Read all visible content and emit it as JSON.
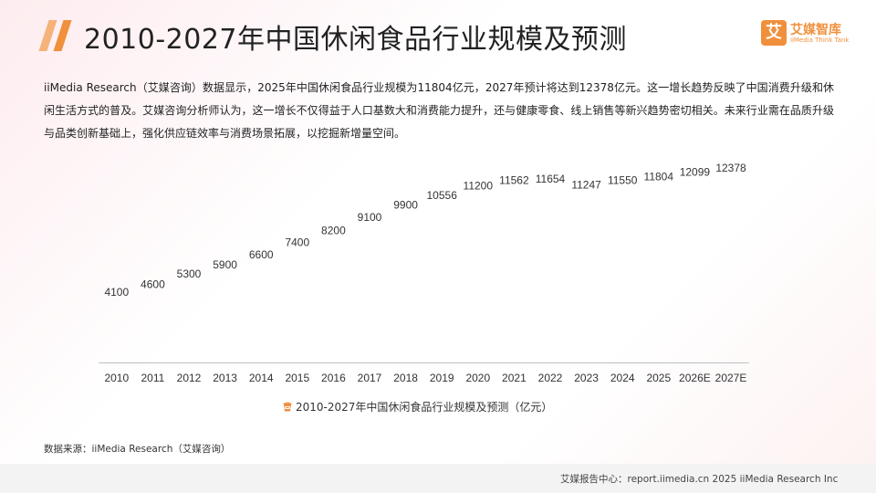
{
  "header": {
    "title": "2010-2027年中国休闲食品行业规模及预测",
    "logo_mark": "艾",
    "logo_cn": "艾媒智库",
    "logo_en": "iiMedia Think Tank"
  },
  "intro": "iiMedia Research（艾媒咨询）数据显示，2025年中国休闲食品行业规模为11804亿元，2027年预计将达到12378亿元。这一增长趋势反映了中国消费升级和休闲生活方式的普及。艾媒咨询分析师认为，这一增长不仅得益于人口基数大和消费能力提升，还与健康零食、线上销售等新兴趋势密切相关。未来行业需在品质升级与品类创新基础上，强化供应链效率与消费场景拓展，以挖掘新增量空间。",
  "chart_data": {
    "type": "bar",
    "title": "2010-2027年中国休闲食品行业规模及预测",
    "categories": [
      "2010",
      "2011",
      "2012",
      "2013",
      "2014",
      "2015",
      "2016",
      "2017",
      "2018",
      "2019",
      "2020",
      "2021",
      "2022",
      "2023",
      "2024",
      "2025",
      "2026E",
      "2027E"
    ],
    "values": [
      4100,
      4600,
      5300,
      5900,
      6600,
      7400,
      8200,
      9100,
      9900,
      10556,
      11200,
      11562,
      11654,
      11247,
      11550,
      11804,
      12099,
      12378
    ],
    "value_labels": [
      "4100",
      "4600",
      "5300",
      "5900",
      "6600",
      "7400",
      "8200",
      "9100",
      "9900",
      "10556",
      "11200",
      "11562",
      "11654",
      "11247",
      "11550",
      "11804",
      "12099",
      "12378"
    ],
    "series_name": "2010-2027年中国休闲食品行业规模及预测（亿元）",
    "unit": "亿元",
    "ylim": [
      0,
      12500
    ],
    "xlabel": "",
    "ylabel": "",
    "legend_position": "bottom-center",
    "grid": false,
    "bar_color": "#ef8c3e",
    "icon_size_value": 700
  },
  "source": "数据来源：iiMedia Research（艾媒咨询）",
  "footer": "艾媒报告中心：report.iimedia.cn   2025 iiMedia Research Inc"
}
